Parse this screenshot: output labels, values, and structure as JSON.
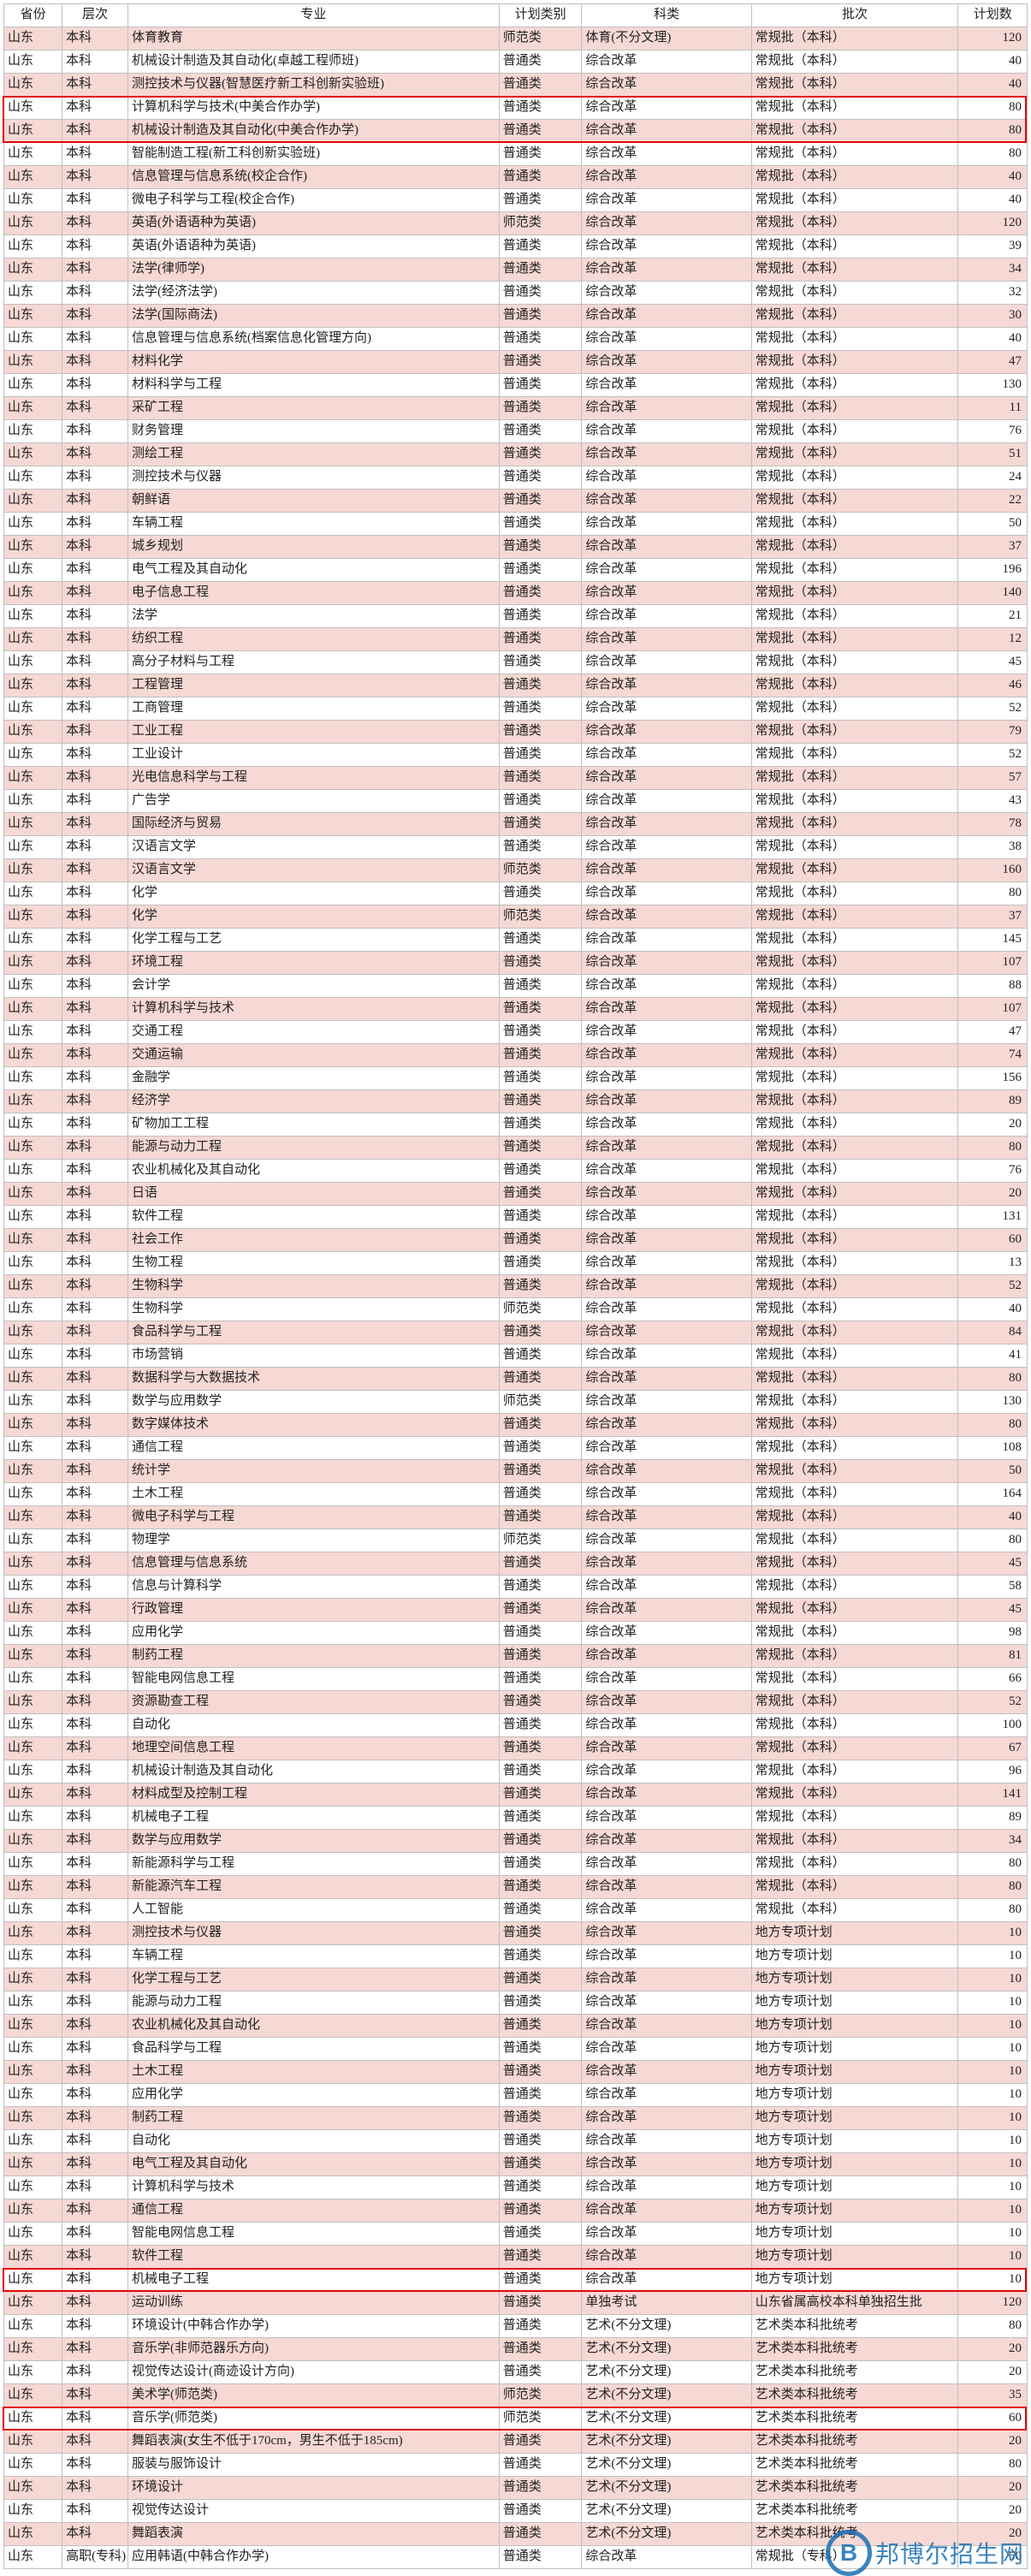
{
  "columns": [
    "省份",
    "层次",
    "专业",
    "计划类别",
    "科类",
    "批次",
    "计划数"
  ],
  "province_default": "山东",
  "level_default": "本科",
  "plan_type_default": "普通类",
  "subject_default": "综合改革",
  "batch_default": "常规批（本科）",
  "watermark": {
    "logo_text": "B",
    "text": "邦博尔招生网"
  },
  "highlight_indices": [
    3,
    4,
    97,
    103
  ],
  "highlight_pair_rows": [
    [
      3,
      4
    ]
  ],
  "colors": {
    "row_odd": "#f6d8d4",
    "row_even": "#ffffff",
    "border": "#c0c0c0",
    "text": "#222222",
    "highlight": "#e20707",
    "watermark": "#1b6fb5"
  },
  "rows": [
    {
      "major": "体育教育",
      "plan_type": "师范类",
      "subject": "体育(不分文理)",
      "num": 120
    },
    {
      "major": "机械设计制造及其自动化(卓越工程师班)",
      "num": 40
    },
    {
      "major": "测控技术与仪器(智慧医疗新工科创新实验班)",
      "num": 40
    },
    {
      "major": "计算机科学与技术(中美合作办学)",
      "num": 80
    },
    {
      "major": "机械设计制造及其自动化(中美合作办学)",
      "num": 80
    },
    {
      "major": "智能制造工程(新工科创新实验班)",
      "num": 80
    },
    {
      "major": "信息管理与信息系统(校企合作)",
      "num": 40
    },
    {
      "major": "微电子科学与工程(校企合作)",
      "num": 40
    },
    {
      "major": "英语(外语语种为英语)",
      "plan_type": "师范类",
      "num": 120
    },
    {
      "major": "英语(外语语种为英语)",
      "num": 39
    },
    {
      "major": "法学(律师学)",
      "num": 34
    },
    {
      "major": "法学(经济法学)",
      "num": 32
    },
    {
      "major": "法学(国际商法)",
      "num": 30
    },
    {
      "major": "信息管理与信息系统(档案信息化管理方向)",
      "num": 40
    },
    {
      "major": "材料化学",
      "num": 47
    },
    {
      "major": "材料科学与工程",
      "num": 130
    },
    {
      "major": "采矿工程",
      "num": 11
    },
    {
      "major": "财务管理",
      "num": 76
    },
    {
      "major": "测绘工程",
      "num": 51
    },
    {
      "major": "测控技术与仪器",
      "num": 24
    },
    {
      "major": "朝鲜语",
      "num": 22
    },
    {
      "major": "车辆工程",
      "num": 50
    },
    {
      "major": "城乡规划",
      "num": 37
    },
    {
      "major": "电气工程及其自动化",
      "num": 196
    },
    {
      "major": "电子信息工程",
      "num": 140
    },
    {
      "major": "法学",
      "num": 21
    },
    {
      "major": "纺织工程",
      "num": 12
    },
    {
      "major": "高分子材料与工程",
      "num": 45
    },
    {
      "major": "工程管理",
      "num": 46
    },
    {
      "major": "工商管理",
      "num": 52
    },
    {
      "major": "工业工程",
      "num": 79
    },
    {
      "major": "工业设计",
      "num": 52
    },
    {
      "major": "光电信息科学与工程",
      "num": 57
    },
    {
      "major": "广告学",
      "num": 43
    },
    {
      "major": "国际经济与贸易",
      "num": 78
    },
    {
      "major": "汉语言文学",
      "num": 38
    },
    {
      "major": "汉语言文学",
      "plan_type": "师范类",
      "num": 160
    },
    {
      "major": "化学",
      "num": 80
    },
    {
      "major": "化学",
      "plan_type": "师范类",
      "num": 37
    },
    {
      "major": "化学工程与工艺",
      "num": 145
    },
    {
      "major": "环境工程",
      "num": 107
    },
    {
      "major": "会计学",
      "num": 88
    },
    {
      "major": "计算机科学与技术",
      "num": 107
    },
    {
      "major": "交通工程",
      "num": 47
    },
    {
      "major": "交通运输",
      "num": 74
    },
    {
      "major": "金融学",
      "num": 156
    },
    {
      "major": "经济学",
      "num": 89
    },
    {
      "major": "矿物加工工程",
      "num": 20
    },
    {
      "major": "能源与动力工程",
      "num": 80
    },
    {
      "major": "农业机械化及其自动化",
      "num": 76
    },
    {
      "major": "日语",
      "num": 20
    },
    {
      "major": "软件工程",
      "num": 131
    },
    {
      "major": "社会工作",
      "num": 60
    },
    {
      "major": "生物工程",
      "num": 13
    },
    {
      "major": "生物科学",
      "num": 52
    },
    {
      "major": "生物科学",
      "plan_type": "师范类",
      "num": 40
    },
    {
      "major": "食品科学与工程",
      "num": 84
    },
    {
      "major": "市场营销",
      "num": 41
    },
    {
      "major": "数据科学与大数据技术",
      "num": 80
    },
    {
      "major": "数学与应用数学",
      "plan_type": "师范类",
      "num": 130
    },
    {
      "major": "数字媒体技术",
      "num": 80
    },
    {
      "major": "通信工程",
      "num": 108
    },
    {
      "major": "统计学",
      "num": 50
    },
    {
      "major": "土木工程",
      "num": 164
    },
    {
      "major": "微电子科学与工程",
      "num": 40
    },
    {
      "major": "物理学",
      "plan_type": "师范类",
      "num": 80
    },
    {
      "major": "信息管理与信息系统",
      "num": 45
    },
    {
      "major": "信息与计算科学",
      "num": 58
    },
    {
      "major": "行政管理",
      "num": 45
    },
    {
      "major": "应用化学",
      "num": 98
    },
    {
      "major": "制药工程",
      "num": 81
    },
    {
      "major": "智能电网信息工程",
      "num": 66
    },
    {
      "major": "资源勘查工程",
      "num": 52
    },
    {
      "major": "自动化",
      "num": 100
    },
    {
      "major": "地理空间信息工程",
      "num": 67
    },
    {
      "major": "机械设计制造及其自动化",
      "num": 96
    },
    {
      "major": "材料成型及控制工程",
      "num": 141
    },
    {
      "major": "机械电子工程",
      "num": 89
    },
    {
      "major": "数学与应用数学",
      "num": 34
    },
    {
      "major": "新能源科学与工程",
      "num": 80
    },
    {
      "major": "新能源汽车工程",
      "num": 80
    },
    {
      "major": "人工智能",
      "num": 80
    },
    {
      "major": "测控技术与仪器",
      "batch": "地方专项计划",
      "num": 10
    },
    {
      "major": "车辆工程",
      "batch": "地方专项计划",
      "num": 10
    },
    {
      "major": "化学工程与工艺",
      "batch": "地方专项计划",
      "num": 10
    },
    {
      "major": "能源与动力工程",
      "batch": "地方专项计划",
      "num": 10
    },
    {
      "major": "农业机械化及其自动化",
      "batch": "地方专项计划",
      "num": 10
    },
    {
      "major": "食品科学与工程",
      "batch": "地方专项计划",
      "num": 10
    },
    {
      "major": "土木工程",
      "batch": "地方专项计划",
      "num": 10
    },
    {
      "major": "应用化学",
      "batch": "地方专项计划",
      "num": 10
    },
    {
      "major": "制药工程",
      "batch": "地方专项计划",
      "num": 10
    },
    {
      "major": "自动化",
      "batch": "地方专项计划",
      "num": 10
    },
    {
      "major": "电气工程及其自动化",
      "batch": "地方专项计划",
      "num": 10
    },
    {
      "major": "计算机科学与技术",
      "batch": "地方专项计划",
      "num": 10
    },
    {
      "major": "通信工程",
      "batch": "地方专项计划",
      "num": 10
    },
    {
      "major": "智能电网信息工程",
      "batch": "地方专项计划",
      "num": 10
    },
    {
      "major": "软件工程",
      "batch": "地方专项计划",
      "num": 10
    },
    {
      "major": "机械电子工程",
      "batch": "地方专项计划",
      "num": 10
    },
    {
      "major": "运动训练",
      "subject": "单独考试",
      "batch": "山东省属高校本科单独招生批",
      "num": 120
    },
    {
      "major": "环境设计(中韩合作办学)",
      "subject": "艺术(不分文理)",
      "batch": "艺术类本科批统考",
      "num": 80
    },
    {
      "major": "音乐学(非师范器乐方向)",
      "subject": "艺术(不分文理)",
      "batch": "艺术类本科批统考",
      "num": 20
    },
    {
      "major": "视觉传达设计(商迹设计方向)",
      "subject": "艺术(不分文理)",
      "batch": "艺术类本科批统考",
      "num": 20
    },
    {
      "major": "美术学(师范类)",
      "plan_type": "师范类",
      "subject": "艺术(不分文理)",
      "batch": "艺术类本科批统考",
      "num": 35
    },
    {
      "major": "音乐学(师范类)",
      "plan_type": "师范类",
      "subject": "艺术(不分文理)",
      "batch": "艺术类本科批统考",
      "num": 60
    },
    {
      "major": "舞蹈表演(女生不低于170cm，男生不低于185cm)",
      "subject": "艺术(不分文理)",
      "batch": "艺术类本科批统考",
      "num": 20
    },
    {
      "major": "服装与服饰设计",
      "subject": "艺术(不分文理)",
      "batch": "艺术类本科批统考",
      "num": 80
    },
    {
      "major": "环境设计",
      "subject": "艺术(不分文理)",
      "batch": "艺术类本科批统考",
      "num": 20
    },
    {
      "major": "视觉传达设计",
      "subject": "艺术(不分文理)",
      "batch": "艺术类本科批统考",
      "num": 20
    },
    {
      "major": "舞蹈表演",
      "subject": "艺术(不分文理)",
      "batch": "艺术类本科批统考",
      "num": 20
    },
    {
      "major": "应用韩语(中韩合作办学)",
      "level": "高职(专科)",
      "batch": "常规批（专科）",
      "num": 50
    }
  ]
}
